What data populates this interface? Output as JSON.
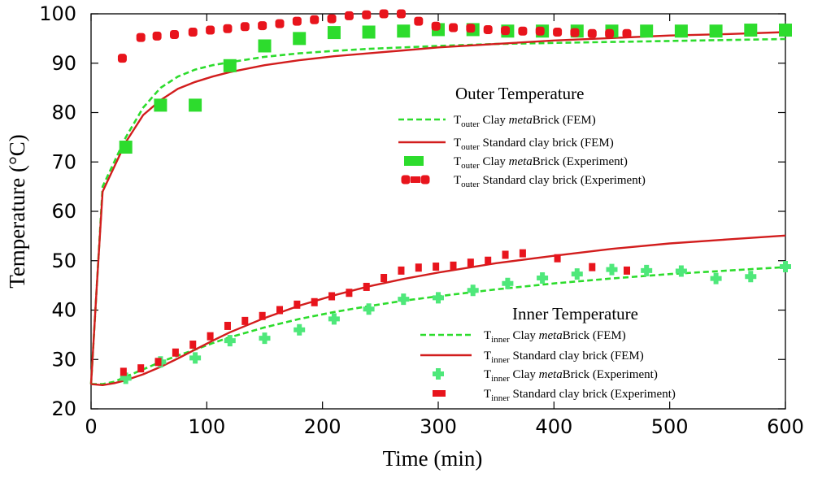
{
  "chart_data": {
    "type": "line",
    "xlabel": "Time (min)",
    "ylabel": "Temperature  (°C)",
    "xlim": [
      0,
      600
    ],
    "ylim": [
      20,
      100
    ],
    "xticks": [
      "0",
      "100",
      "200",
      "300",
      "400",
      "500",
      "600"
    ],
    "yticks": [
      "20",
      "30",
      "40",
      "50",
      "60",
      "70",
      "80",
      "90",
      "100"
    ],
    "grid": false,
    "legend_groups": [
      {
        "title": "Outer Temperature",
        "entries": [
          {
            "sym": "T",
            "sub": "outer",
            "pre": " Clay ",
            "em": "meta",
            "post": "Brick (FEM)"
          },
          {
            "sym": "T",
            "sub": "outer",
            "pre": " Standard clay brick (FEM)",
            "em": "",
            "post": ""
          },
          {
            "sym": "T",
            "sub": "outer",
            "pre": " Clay ",
            "em": "meta",
            "post": "Brick (Experiment)"
          },
          {
            "sym": "T",
            "sub": "outer",
            "pre": " Standard clay brick (Experiment)",
            "em": "",
            "post": ""
          }
        ]
      },
      {
        "title": "Inner Temperature",
        "entries": [
          {
            "sym": "T",
            "sub": "inner",
            "pre": " Clay ",
            "em": "meta",
            "post": "Brick (FEM)"
          },
          {
            "sym": "T",
            "sub": "inner",
            "pre": " Standard clay brick (FEM)",
            "em": "",
            "post": ""
          },
          {
            "sym": "T",
            "sub": "inner",
            "pre": " Clay ",
            "em": "meta",
            "post": "Brick (Experiment)"
          },
          {
            "sym": "T",
            "sub": "inner",
            "pre": " Standard clay brick (Experiment)",
            "em": "",
            "post": ""
          }
        ]
      }
    ],
    "colors": {
      "green": "#2ddc2d",
      "green_light": "#4ee87a",
      "red": "#d21d1d",
      "red_marker": "#e8141c"
    },
    "series": [
      {
        "id": "outer_meta_fem",
        "style": "dashed-line",
        "color": "green",
        "x": [
          0,
          5,
          10,
          20,
          30,
          45,
          60,
          75,
          90,
          105,
          120,
          150,
          180,
          210,
          240,
          270,
          300,
          350,
          400,
          450,
          500,
          550,
          600
        ],
        "y": [
          25,
          45,
          65,
          70,
          75,
          81,
          85,
          87.3,
          88.7,
          89.6,
          90.2,
          91.3,
          92,
          92.5,
          92.9,
          93.2,
          93.5,
          93.9,
          94.1,
          94.3,
          94.5,
          94.7,
          94.9
        ]
      },
      {
        "id": "outer_std_fem",
        "style": "solid-line",
        "color": "red",
        "x": [
          0,
          5,
          10,
          20,
          30,
          45,
          60,
          75,
          90,
          105,
          120,
          150,
          180,
          210,
          240,
          270,
          300,
          350,
          400,
          450,
          500,
          550,
          600
        ],
        "y": [
          25,
          45,
          64,
          69,
          74,
          79.5,
          82.5,
          84.8,
          86.2,
          87.3,
          88.2,
          89.6,
          90.6,
          91.4,
          92,
          92.6,
          93.2,
          93.9,
          94.6,
          95.1,
          95.6,
          95.9,
          96.3
        ]
      },
      {
        "id": "outer_meta_exp",
        "style": "square-markers",
        "color": "green",
        "x": [
          30,
          60,
          90,
          120,
          150,
          180,
          210,
          240,
          270,
          300,
          330,
          360,
          390,
          420,
          450,
          480,
          510,
          540,
          570,
          600
        ],
        "y": [
          73,
          81.5,
          81.5,
          89.5,
          93.5,
          95,
          96.2,
          96.3,
          96.5,
          96.8,
          96.8,
          96.5,
          96.5,
          96.5,
          96.5,
          96.5,
          96.5,
          96.5,
          96.7,
          96.7
        ]
      },
      {
        "id": "outer_std_exp",
        "style": "round-markers",
        "color": "red_marker",
        "x": [
          27,
          43,
          57,
          72,
          88,
          103,
          118,
          133,
          148,
          163,
          178,
          193,
          208,
          223,
          238,
          253,
          268,
          283,
          298,
          313,
          328,
          343,
          358,
          373,
          388,
          403,
          418,
          433,
          448,
          463
        ],
        "y": [
          91,
          95.2,
          95.5,
          95.8,
          96.3,
          96.7,
          97,
          97.4,
          97.6,
          98,
          98.5,
          98.8,
          99,
          99.6,
          99.8,
          100,
          100,
          98.5,
          97.5,
          97.2,
          97.1,
          96.8,
          96.6,
          96.5,
          96.5,
          96.3,
          96.2,
          96,
          96,
          96
        ]
      },
      {
        "id": "inner_meta_fem",
        "style": "dashed-line",
        "color": "green",
        "x": [
          0,
          10,
          20,
          30,
          45,
          60,
          75,
          90,
          105,
          120,
          150,
          180,
          210,
          240,
          270,
          300,
          350,
          400,
          450,
          500,
          550,
          600
        ],
        "y": [
          25,
          25,
          25.5,
          26.5,
          28,
          29.5,
          30.8,
          32,
          33.3,
          34.5,
          36.5,
          38.2,
          39.6,
          40.8,
          41.9,
          42.8,
          44.2,
          45.4,
          46.4,
          47.3,
          48,
          48.7
        ]
      },
      {
        "id": "inner_std_fem",
        "style": "solid-line",
        "color": "red",
        "x": [
          0,
          10,
          20,
          30,
          45,
          60,
          75,
          90,
          105,
          120,
          150,
          180,
          210,
          240,
          270,
          300,
          350,
          400,
          450,
          500,
          550,
          600
        ],
        "y": [
          25,
          24.8,
          25.2,
          25.8,
          27,
          28.5,
          30.2,
          32,
          33.8,
          35.5,
          38.4,
          40.9,
          43,
          44.8,
          46.3,
          47.6,
          49.5,
          51,
          52.4,
          53.5,
          54.3,
          55.1
        ]
      },
      {
        "id": "inner_meta_exp",
        "style": "cross-markers",
        "color": "green_light",
        "x": [
          30,
          60,
          90,
          120,
          150,
          180,
          210,
          240,
          270,
          300,
          330,
          360,
          390,
          420,
          450,
          480,
          510,
          540,
          570,
          600
        ],
        "y": [
          26.2,
          29.5,
          30.3,
          33.8,
          34.3,
          36,
          38.2,
          40.2,
          42.2,
          42.5,
          44,
          45.4,
          46.5,
          47.3,
          48.2,
          48,
          47.9,
          46.4,
          46.8,
          48.8
        ]
      },
      {
        "id": "inner_std_exp",
        "style": "rect-markers",
        "color": "red_marker",
        "x": [
          28,
          43,
          58,
          73,
          88,
          103,
          118,
          133,
          148,
          163,
          178,
          193,
          208,
          223,
          238,
          253,
          268,
          283,
          298,
          313,
          328,
          343,
          358,
          373,
          403,
          433,
          463
        ],
        "y": [
          27.5,
          28.2,
          29.5,
          31.4,
          33,
          34.7,
          36.8,
          37.8,
          38.8,
          40,
          41.1,
          41.6,
          42.8,
          43.5,
          44.7,
          46.5,
          48,
          48.6,
          48.8,
          49,
          49.6,
          50,
          51.2,
          51.5,
          50.5,
          48.7,
          48
        ]
      }
    ]
  }
}
